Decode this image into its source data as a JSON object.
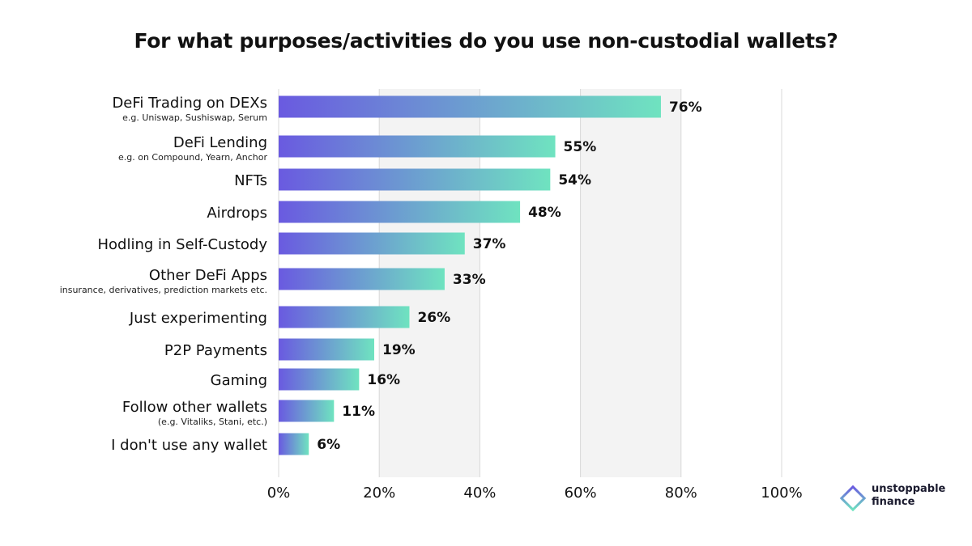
{
  "chart_data": {
    "type": "bar",
    "orientation": "horizontal",
    "title": "For what purposes/activities do you use non-custodial wallets?",
    "categories": [
      {
        "label": "DeFi Trading on DEXs",
        "sublabel": "e.g. Uniswap, Sushiswap, Serum"
      },
      {
        "label": "DeFi Lending",
        "sublabel": "e.g. on Compound, Yearn, Anchor"
      },
      {
        "label": "NFTs",
        "sublabel": ""
      },
      {
        "label": "Airdrops",
        "sublabel": ""
      },
      {
        "label": "Hodling in Self-Custody",
        "sublabel": ""
      },
      {
        "label": "Other DeFi Apps",
        "sublabel": "insurance, derivatives, prediction markets etc."
      },
      {
        "label": "Just experimenting",
        "sublabel": ""
      },
      {
        "label": "P2P Payments",
        "sublabel": ""
      },
      {
        "label": "Gaming",
        "sublabel": ""
      },
      {
        "label": "Follow other wallets",
        "sublabel": "(e.g. Vitaliks, Stani, etc.)"
      },
      {
        "label": "I don't use any wallet",
        "sublabel": ""
      }
    ],
    "values": [
      76,
      55,
      54,
      48,
      37,
      33,
      26,
      19,
      16,
      11,
      6
    ],
    "value_labels": [
      "76%",
      "55%",
      "54%",
      "48%",
      "37%",
      "33%",
      "26%",
      "19%",
      "16%",
      "11%",
      "6%"
    ],
    "xlim": [
      0,
      100
    ],
    "x_ticks": [
      "0%",
      "20%",
      "40%",
      "60%",
      "80%",
      "100%"
    ],
    "grid": "alternating vertical bands",
    "colors": {
      "bar_gradient_start": "#6a5ae0",
      "bar_gradient_end": "#6fe3c0",
      "band": "#f3f3f3",
      "gridline": "#d8d8d8"
    }
  },
  "brand": {
    "line1": "unstoppable",
    "line2": "finance",
    "logo_icon": "diamond-outline-icon"
  }
}
